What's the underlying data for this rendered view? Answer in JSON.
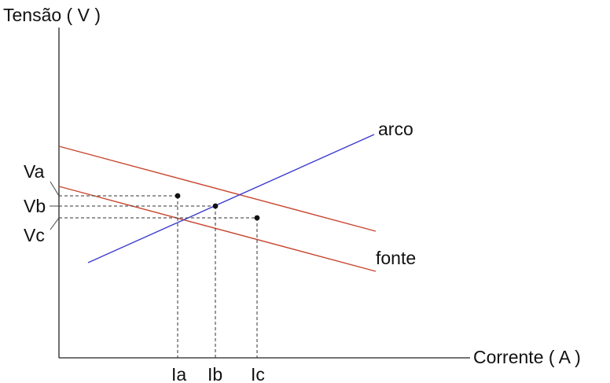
{
  "axes": {
    "y_label": "Tensão ( V )",
    "x_label": "Corrente ( A )"
  },
  "curves": {
    "arc_label": "arco",
    "source_label": "fonte"
  },
  "voltage_ticks": [
    "Va",
    "Vb",
    "Vc"
  ],
  "current_ticks": [
    "Ia",
    "Ib",
    "Ic"
  ],
  "colors": {
    "arc_line": "#3a3acf",
    "source_line": "#c8452f",
    "axis": "#222222",
    "dash": "#333333",
    "text": "#111111"
  }
}
